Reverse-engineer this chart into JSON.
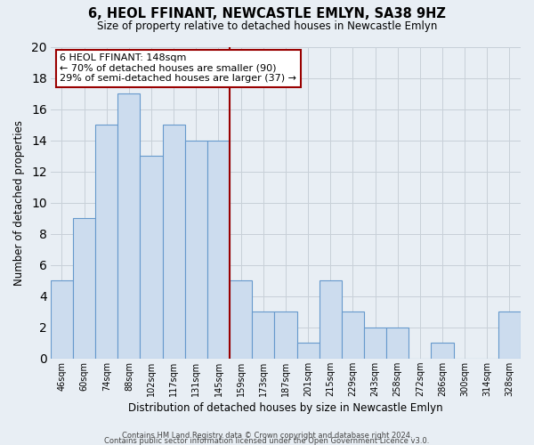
{
  "title": "6, HEOL FFINANT, NEWCASTLE EMLYN, SA38 9HZ",
  "subtitle": "Size of property relative to detached houses in Newcastle Emlyn",
  "xlabel": "Distribution of detached houses by size in Newcastle Emlyn",
  "ylabel": "Number of detached properties",
  "categories": [
    "46sqm",
    "60sqm",
    "74sqm",
    "88sqm",
    "102sqm",
    "117sqm",
    "131sqm",
    "145sqm",
    "159sqm",
    "173sqm",
    "187sqm",
    "201sqm",
    "215sqm",
    "229sqm",
    "243sqm",
    "258sqm",
    "272sqm",
    "286sqm",
    "300sqm",
    "314sqm",
    "328sqm"
  ],
  "values": [
    5,
    9,
    15,
    17,
    13,
    15,
    14,
    14,
    5,
    3,
    3,
    1,
    5,
    3,
    2,
    2,
    0,
    1,
    0,
    0,
    3
  ],
  "bar_color": "#ccdcee",
  "bar_edge_color": "#6699cc",
  "vline_x_index": 7.5,
  "vline_color": "#990000",
  "ylim": [
    0,
    20
  ],
  "yticks": [
    0,
    2,
    4,
    6,
    8,
    10,
    12,
    14,
    16,
    18,
    20
  ],
  "annotation_title": "6 HEOL FFINANT: 148sqm",
  "annotation_line1": "← 70% of detached houses are smaller (90)",
  "annotation_line2": "29% of semi-detached houses are larger (37) →",
  "annotation_box_color": "#ffffff",
  "annotation_box_edge": "#990000",
  "grid_color": "#c8d0d8",
  "bg_color": "#e8eef4",
  "plot_bg_color": "#e8eef4",
  "footer1": "Contains HM Land Registry data © Crown copyright and database right 2024.",
  "footer2": "Contains public sector information licensed under the Open Government Licence v3.0."
}
